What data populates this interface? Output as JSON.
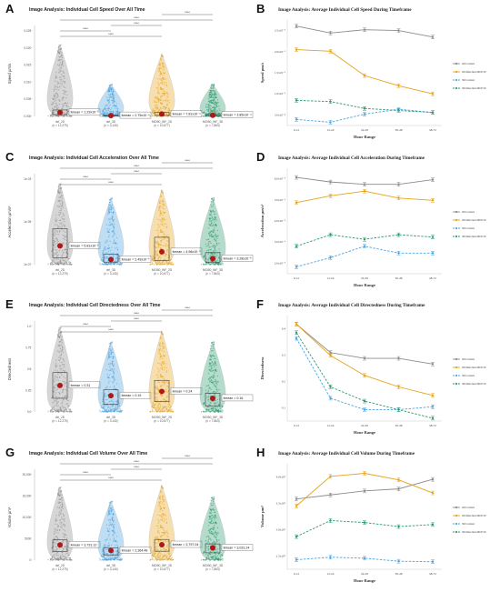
{
  "panels": {
    "A": {
      "letter": "A"
    },
    "B": {
      "letter": "B"
    },
    "C": {
      "letter": "C"
    },
    "D": {
      "letter": "D"
    },
    "E": {
      "letter": "E"
    },
    "F": {
      "letter": "F"
    },
    "G": {
      "letter": "G"
    },
    "H": {
      "letter": "H"
    }
  },
  "colors": {
    "2D Control": "#8c8c8c",
    "2D Infection MOI 50": "#e6a21a",
    "3D Control": "#4aa3df",
    "3D Infection MOI 50": "#2e9a6e",
    "mean_dot": "#b01818"
  },
  "chart_data": [
    {
      "id": "A",
      "type": "violin",
      "title": "Image Analysis: Individual Cell Speed Over All Time",
      "ylabel": "Speed μm/s",
      "yticks": [
        "0.000⁻",
        "0.005⁻",
        "0.010⁻",
        "0.015⁻",
        "0.020⁻",
        "0.025⁻"
      ],
      "ylim": [
        0,
        0.028
      ],
      "groups": [
        {
          "name": "ctrl_2D",
          "n": "(n = 12,275)",
          "color": "#8c8c8c",
          "mean": 0.00129,
          "mean_label": "x̄mean = 1.29x10⁻³",
          "q1": 0.0006,
          "q3": 0.0021,
          "top": 0.0235
        },
        {
          "name": "ctrl_3D",
          "n": "(n = 3,140)",
          "color": "#4aa3df",
          "mean": 0.000275,
          "mean_label": "x̄mean = 2.75x10⁻⁴",
          "q1": 0.0001,
          "q3": 0.0005,
          "top": 0.0105
        },
        {
          "name": "MOI50_INF_2D",
          "n": "(n = 10,677)",
          "color": "#e6a21a",
          "mean": 0.000781,
          "mean_label": "x̄mean = 7.81x10⁻⁴",
          "q1": 0.0003,
          "q3": 0.0013,
          "top": 0.0205
        },
        {
          "name": "MOI50_INF_3D",
          "n": "(n = 7,863)",
          "color": "#2e9a6e",
          "mean": 0.000385,
          "mean_label": "x̄mean = 3.85x10⁻⁴",
          "q1": 0.0001,
          "q3": 0.0007,
          "top": 0.0105
        }
      ],
      "significance": [
        "****",
        "****",
        "****",
        "****",
        "****"
      ]
    },
    {
      "id": "B",
      "type": "line",
      "title": "Image Analysis: Average Individual Cell Speed During Timeframe",
      "xlabel": "Hour Range",
      "ylabel": "Speed μm/s",
      "categories": [
        "0-12",
        "12-24",
        "24-36",
        "36-48",
        "48-72"
      ],
      "yticks": [
        "5.0x10⁻⁴",
        "1.0x10⁻³",
        "1.5x10⁻³",
        "2.0x10⁻³",
        "2.5x10⁻³"
      ],
      "ylim": [
        0.0002,
        0.0028
      ],
      "legend_position": "right",
      "series": [
        {
          "name": "2D Control",
          "color": "#8c8c8c",
          "dash": false,
          "values": [
            0.00265,
            0.00248,
            0.00256,
            0.00254,
            0.00238
          ]
        },
        {
          "name": "2D Infection MOI 50",
          "color": "#e6a21a",
          "dash": false,
          "values": [
            0.00207,
            0.00203,
            0.00143,
            0.00118,
            0.00098
          ]
        },
        {
          "name": "3D Control",
          "color": "#4aa3df",
          "dash": true,
          "values": [
            0.00035,
            0.00028,
            0.00048,
            0.0006,
            0.00052
          ]
        },
        {
          "name": "3D Infection MOI 50",
          "color": "#2e9a6e",
          "dash": true,
          "values": [
            0.00082,
            0.00079,
            0.00062,
            0.00057,
            0.00052
          ]
        }
      ]
    },
    {
      "id": "C",
      "type": "violin",
      "title": "Image Analysis: Individual Cell Acceleration Over All Time",
      "ylabel": "Acceleration μm/s²",
      "yticks": [
        "1e-07⁻",
        "1e-05⁻",
        "1e-03⁻"
      ],
      "ylim": [
        0,
        1
      ],
      "log_scale": true,
      "groups": [
        {
          "name": "ctrl_2D",
          "n": "(n = 12,275)",
          "color": "#8c8c8c",
          "mean": 0.22,
          "mean_label": "x̄mean = 5.81x10⁻⁶",
          "q1": 0.08,
          "q3": 0.42,
          "top": 0.95
        },
        {
          "name": "ctrl_3D",
          "n": "(n = 3,140)",
          "color": "#4aa3df",
          "mean": 0.06,
          "mean_label": "x̄mean = 2.49x10⁻⁶",
          "q1": 0.03,
          "q3": 0.12,
          "top": 0.78
        },
        {
          "name": "MOI50_INF_2D",
          "n": "(n = 10,677)",
          "color": "#e6a21a",
          "mean": 0.15,
          "mean_label": "x̄mean = 4.98x10⁻⁶",
          "q1": 0.05,
          "q3": 0.32,
          "top": 0.88
        },
        {
          "name": "MOI50_INF_3D",
          "n": "(n = 7,863)",
          "color": "#2e9a6e",
          "mean": 0.07,
          "mean_label": "x̄mean = 3.28x10⁻⁶",
          "q1": 0.03,
          "q3": 0.14,
          "top": 0.78
        }
      ],
      "significance": [
        "****",
        "****",
        "****",
        "****",
        "****"
      ]
    },
    {
      "id": "D",
      "type": "line",
      "title": "Image Analysis: Average Individual Cell Acceleration During Timeframe",
      "xlabel": "Hour Range",
      "ylabel": "Acceleration μm/s²",
      "categories": [
        "0-12",
        "12-24",
        "24-36",
        "36-48",
        "48-72"
      ],
      "yticks": [
        "2.0x10⁻⁶",
        "3.0x10⁻⁶",
        "4.0x10⁻⁶",
        "5.0x10⁻⁶",
        "6.0x10⁻⁶"
      ],
      "ylim": [
        1.7e-06,
        6.3e-06
      ],
      "legend_position": "right",
      "series": [
        {
          "name": "2D Control",
          "color": "#8c8c8c",
          "dash": false,
          "values": [
            5.9e-06,
            5.7e-06,
            5.6e-06,
            5.6e-06,
            5.8e-06
          ]
        },
        {
          "name": "2D Infection MOI 50",
          "color": "#e6a21a",
          "dash": false,
          "values": [
            4.8e-06,
            5.1e-06,
            5.3e-06,
            5e-06,
            4.9e-06
          ]
        },
        {
          "name": "3D Control",
          "color": "#4aa3df",
          "dash": true,
          "values": [
            2e-06,
            2.4e-06,
            2.9e-06,
            2.6e-06,
            2.6e-06
          ]
        },
        {
          "name": "3D Infection MOI 50",
          "color": "#2e9a6e",
          "dash": true,
          "values": [
            2.9e-06,
            3.4e-06,
            3.2e-06,
            3.4e-06,
            3.3e-06
          ]
        }
      ]
    },
    {
      "id": "E",
      "type": "violin",
      "title": "Image Analysis: Individual Cell Directedness Over All Time",
      "ylabel": "Directedness",
      "yticks": [
        "0.0⁻",
        "0.25⁻",
        "0.5⁻",
        "0.75⁻",
        "1.0⁻"
      ],
      "ylim": [
        0,
        1.0
      ],
      "groups": [
        {
          "name": "ctrl_2D",
          "n": "(n = 12,275)",
          "color": "#8c8c8c",
          "mean": 0.31,
          "mean_label": "x̄mean = 0.31",
          "q1": 0.16,
          "q3": 0.46,
          "top": 0.99
        },
        {
          "name": "ctrl_3D",
          "n": "(n = 3,140)",
          "color": "#4aa3df",
          "mean": 0.19,
          "mean_label": "x̄mean = 0.19",
          "q1": 0.09,
          "q3": 0.26,
          "top": 0.82
        },
        {
          "name": "MOI50_INF_2D",
          "n": "(n = 10,677)",
          "color": "#e6a21a",
          "mean": 0.24,
          "mean_label": "x̄mean = 0.24",
          "q1": 0.12,
          "q3": 0.37,
          "top": 0.95
        },
        {
          "name": "MOI50_INF_3D",
          "n": "(n = 7,863)",
          "color": "#2e9a6e",
          "mean": 0.16,
          "mean_label": "x̄mean = 0.16",
          "q1": 0.07,
          "q3": 0.22,
          "top": 0.82
        }
      ],
      "significance": [
        "****",
        "****",
        "****",
        "****",
        "****"
      ]
    },
    {
      "id": "F",
      "type": "line",
      "title": "Image Analysis: Average Individual Cell Directedness During Timeframe",
      "xlabel": "Hour Range",
      "ylabel": "Directedness",
      "categories": [
        "0-12",
        "12-24",
        "24-36",
        "36-48",
        "48-72"
      ],
      "yticks": [
        "0.1",
        "0.2",
        "0.3",
        "0.4"
      ],
      "ylim": [
        0.08,
        0.45
      ],
      "legend_position": "right",
      "series": [
        {
          "name": "2D Control",
          "color": "#8c8c8c",
          "dash": false,
          "values": [
            0.42,
            0.32,
            0.3,
            0.3,
            0.28
          ]
        },
        {
          "name": "2D Infection MOI 50",
          "color": "#e6a21a",
          "dash": false,
          "values": [
            0.42,
            0.31,
            0.24,
            0.2,
            0.17
          ]
        },
        {
          "name": "3D Control",
          "color": "#4aa3df",
          "dash": true,
          "values": [
            0.37,
            0.16,
            0.12,
            0.12,
            0.13
          ]
        },
        {
          "name": "3D Infection MOI 50",
          "color": "#2e9a6e",
          "dash": true,
          "values": [
            0.39,
            0.2,
            0.15,
            0.12,
            0.09
          ]
        }
      ]
    },
    {
      "id": "G",
      "type": "violin",
      "title": "Image Analysis: Individual Cell Volume Over All Time",
      "ylabel": "Volume μm³",
      "yticks": [
        "0⁻",
        "5000⁻",
        "10,000⁻",
        "15,000⁻",
        "20,000⁻"
      ],
      "ylim": [
        0,
        21000
      ],
      "groups": [
        {
          "name": "ctrl_2D",
          "n": "(n = 12,275)",
          "color": "#8c8c8c",
          "mean": 3731,
          "mean_label": "x̄mean = 3,731.12",
          "q1": 2100,
          "q3": 5000,
          "top": 18000
        },
        {
          "name": "ctrl_3D",
          "n": "(n = 3,140)",
          "color": "#4aa3df",
          "mean": 2364,
          "mean_label": "x̄mean = 2,364.48",
          "q1": 1300,
          "q3": 3000,
          "top": 14500
        },
        {
          "name": "MOI50_INF_2D",
          "n": "(n = 10,677)",
          "color": "#e6a21a",
          "mean": 3797,
          "mean_label": "x̄mean = 3,797.04",
          "q1": 2200,
          "q3": 5100,
          "top": 18500
        },
        {
          "name": "MOI50_INF_3D",
          "n": "(n = 7,863)",
          "color": "#2e9a6e",
          "mean": 3031,
          "mean_label": "x̄mean = 3,031.24",
          "q1": 1800,
          "q3": 4000,
          "top": 15500
        }
      ],
      "significance": [
        "****",
        "****",
        "****",
        "****",
        "****"
      ]
    },
    {
      "id": "H",
      "type": "line",
      "title": "Image Analysis: Average Individual Cell Volume During Timeframe",
      "xlabel": "Hour Range",
      "ylabel": "Volume μm³",
      "categories": [
        "0-12",
        "12-24",
        "24-36",
        "36-48",
        "48-72"
      ],
      "yticks": [
        "2.5x10³",
        "3.0x10³",
        "3.5x10³",
        "4.0x10³"
      ],
      "ylim": [
        2200,
        4300
      ],
      "legend_position": "right",
      "series": [
        {
          "name": "2D Control",
          "color": "#8c8c8c",
          "dash": false,
          "values": [
            3600,
            3680,
            3760,
            3800,
            3990
          ]
        },
        {
          "name": "2D Infection MOI 50",
          "color": "#e6a21a",
          "dash": false,
          "values": [
            3460,
            4050,
            4110,
            3980,
            3720
          ]
        },
        {
          "name": "3D Control",
          "color": "#4aa3df",
          "dash": true,
          "values": [
            2390,
            2440,
            2420,
            2360,
            2350
          ]
        },
        {
          "name": "3D Infection MOI 50",
          "color": "#2e9a6e",
          "dash": true,
          "values": [
            2850,
            3170,
            3130,
            3050,
            3090
          ]
        }
      ]
    }
  ]
}
